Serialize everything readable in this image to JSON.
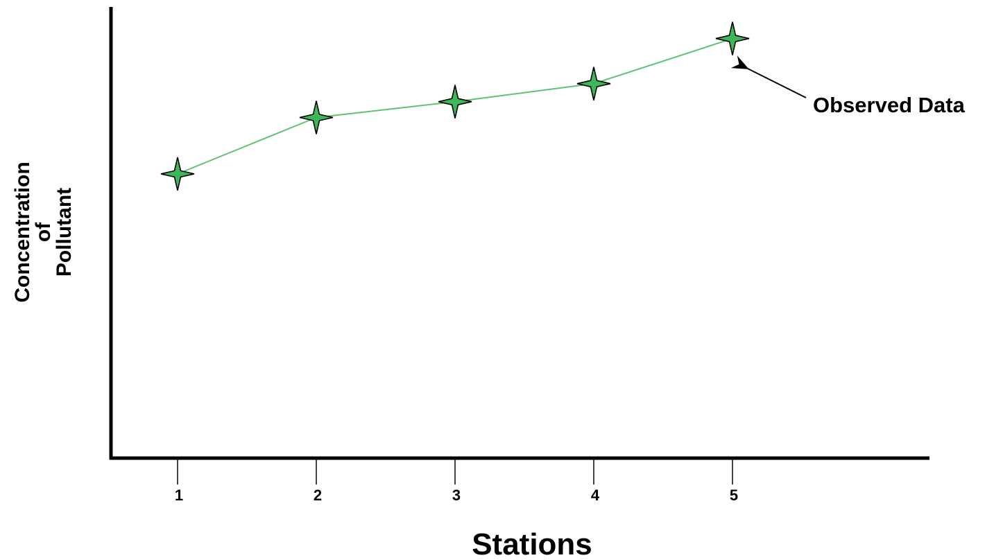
{
  "chart_data": {
    "type": "line",
    "title": "",
    "xlabel": "Stations",
    "ylabel": [
      "Concentration",
      "of",
      "Pollutant"
    ],
    "categories": [
      "1",
      "2",
      "3",
      "4",
      "5"
    ],
    "x": [
      1,
      2,
      3,
      4,
      5
    ],
    "series": [
      {
        "values": [
          0.63,
          0.755,
          0.79,
          0.83,
          0.93
        ],
        "color": "#5dc46f",
        "marker": "four-point-star",
        "marker_fill": "#3cb85a",
        "marker_stroke": "#000000"
      }
    ],
    "ylim": [
      0,
      1
    ],
    "y_ticks_shown": false,
    "grid": false,
    "legend": "none",
    "annotations": [
      {
        "text": "Observed Data",
        "points_to": {
          "x": 5,
          "y": 0.93
        }
      }
    ],
    "colors": {
      "axis": "#000000",
      "line": "#5dc46f",
      "marker_fill": "#3cb85a",
      "marker_stroke": "#000000"
    }
  }
}
